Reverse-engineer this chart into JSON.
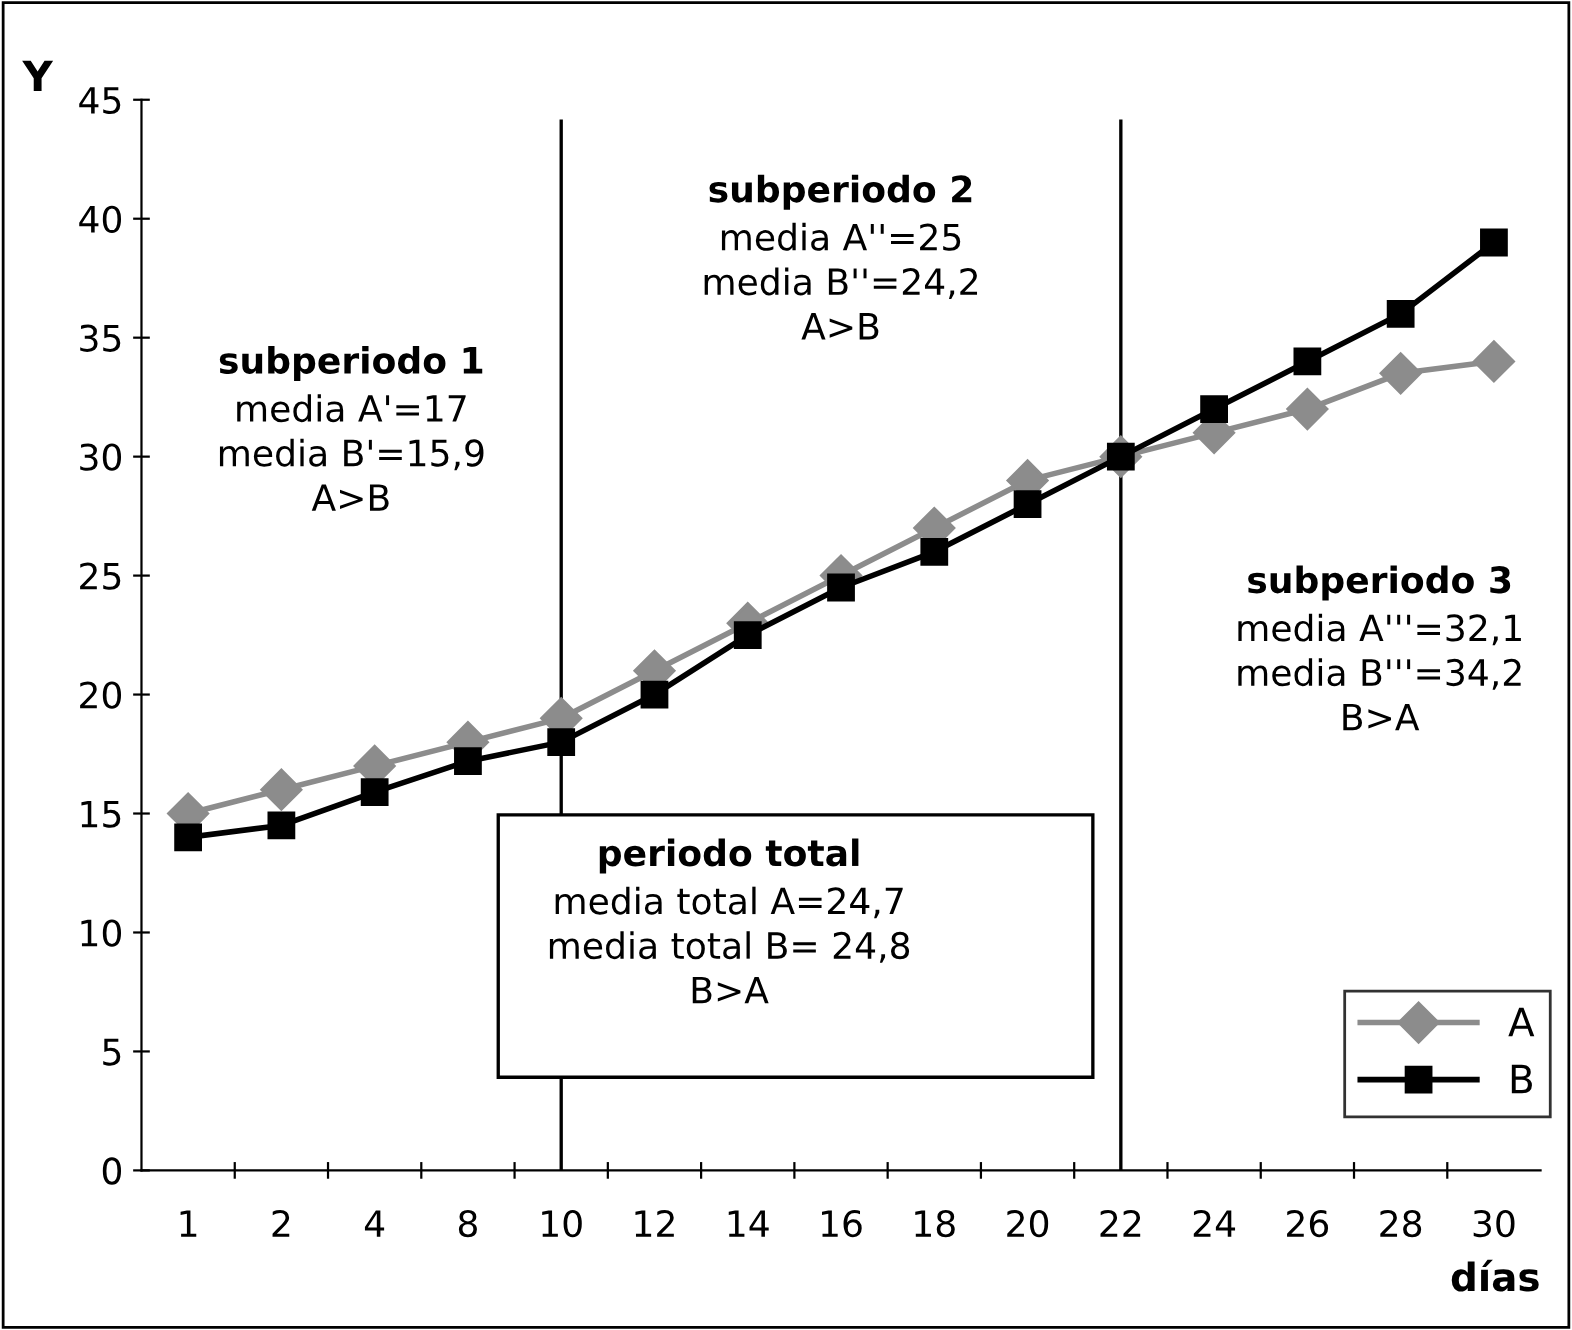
{
  "chart_data": {
    "type": "line",
    "ylabel": "Y",
    "xlabel": "días",
    "categories": [
      "1",
      "2",
      "4",
      "8",
      "10",
      "12",
      "14",
      "16",
      "18",
      "20",
      "22",
      "24",
      "26",
      "28",
      "30"
    ],
    "series": [
      {
        "name": "A",
        "color": "#8c8c8c",
        "marker": "diamond",
        "values": [
          15,
          16,
          17,
          18,
          19,
          21,
          23,
          25,
          27,
          29,
          30,
          31,
          32,
          33.5,
          34
        ]
      },
      {
        "name": "B",
        "color": "#000000",
        "marker": "square",
        "values": [
          14,
          14.5,
          15.9,
          17.2,
          18,
          20,
          22.5,
          24.5,
          26,
          28,
          30,
          32,
          34,
          36,
          39
        ]
      }
    ],
    "ylim": [
      0,
      45
    ],
    "yticks": [
      0,
      5,
      10,
      15,
      20,
      25,
      30,
      35,
      40,
      45
    ],
    "ref_lines": [
      {
        "axis": "x",
        "value": "10",
        "color": "#000000"
      },
      {
        "axis": "x",
        "value": "22",
        "color": "#000000"
      }
    ],
    "annotations": [
      "subperiodo 1\nmedia A'=17\nmedia B'=15,9\nA>B",
      "subperiodo 2\nmedia A''=25\nmedia B''=24,2\nA>B",
      "subperiodo 3\nmedia A'''=32,1\nmedia B'''=34,2\nB>A",
      "periodo total\nmedia total A=24,7\nmedia total B= 24,8\nB>A"
    ],
    "legend": "bottom right",
    "grid": false
  }
}
